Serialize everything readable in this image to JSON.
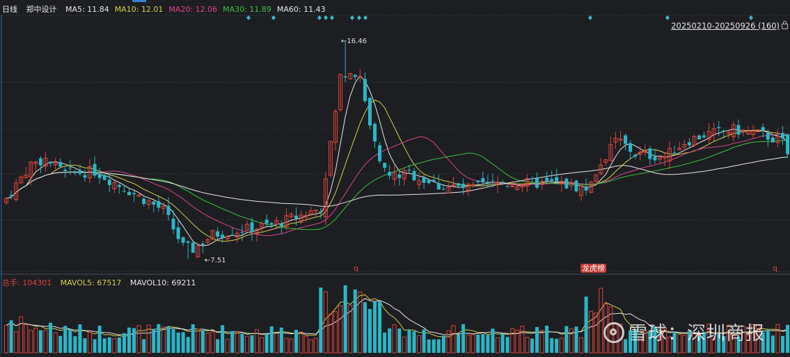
{
  "header": {
    "period": "日线",
    "stock_name": "郑中设计",
    "ma": [
      {
        "label": "MA5:",
        "value": "11.84",
        "color": "#e8e8e8"
      },
      {
        "label": "MA10:",
        "value": "12.01",
        "color": "#d8d24a"
      },
      {
        "label": "MA20:",
        "value": "12.06",
        "color": "#e0448a"
      },
      {
        "label": "MA30:",
        "value": "11.89",
        "color": "#3cc43c"
      },
      {
        "label": "MA60:",
        "value": "11.43",
        "color": "#e8e8e8"
      }
    ],
    "date_range": "20250210-20250926 (160)"
  },
  "volume_header": {
    "total_label": "总手:",
    "total_value": "104301",
    "mavol5_label": "MAVOL5:",
    "mavol5_value": "67517",
    "mavol10_label": "MAVOL10:",
    "mavol10_value": "69211"
  },
  "annotations": {
    "high_label": "16.46",
    "low_label": "7.51",
    "event_marker_1": "q",
    "event_marker_2": "q",
    "tag_label": "龙虎榜"
  },
  "watermark": "雪球：深圳商报",
  "colors": {
    "up": "#e0443a",
    "down": "#2ab7c8",
    "ma5": "#e8e8e8",
    "ma10": "#d8d24a",
    "ma20": "#e0448a",
    "ma30": "#3cc43c",
    "ma60": "#e8e8e8",
    "background": "#1c1e22",
    "grid": "#3a3d44",
    "diamond": "#3fb8c8"
  },
  "chart_data": {
    "type": "candlestick",
    "period": "daily",
    "count": 160,
    "price_axis_range": [
      7.0,
      17.5
    ],
    "high": 16.46,
    "low": 7.51,
    "last_ma": {
      "MA5": 11.84,
      "MA10": 12.01,
      "MA20": 12.06,
      "MA30": 11.89,
      "MA60": 11.43
    },
    "last_volume": {
      "total": 104301,
      "MAVOL5": 67517,
      "MAVOL10": 69211
    },
    "approximate_close_path": [
      [
        0,
        10.0
      ],
      [
        5,
        11.4
      ],
      [
        8,
        11.6
      ],
      [
        12,
        11.0
      ],
      [
        18,
        11.1
      ],
      [
        25,
        10.3
      ],
      [
        32,
        9.5
      ],
      [
        36,
        8.0
      ],
      [
        38,
        7.9
      ],
      [
        42,
        8.5
      ],
      [
        48,
        8.7
      ],
      [
        54,
        8.9
      ],
      [
        60,
        9.3
      ],
      [
        64,
        9.6
      ],
      [
        66,
        12.3
      ],
      [
        67,
        13.5
      ],
      [
        68,
        15.0
      ],
      [
        70,
        15.3
      ],
      [
        72,
        15.0
      ],
      [
        74,
        13.0
      ],
      [
        76,
        11.4
      ],
      [
        78,
        10.9
      ],
      [
        82,
        11.0
      ],
      [
        88,
        10.5
      ],
      [
        94,
        10.4
      ],
      [
        100,
        10.6
      ],
      [
        106,
        10.6
      ],
      [
        112,
        10.6
      ],
      [
        118,
        10.4
      ],
      [
        121,
        11.4
      ],
      [
        124,
        12.5
      ],
      [
        128,
        11.8
      ],
      [
        134,
        11.7
      ],
      [
        138,
        12.3
      ],
      [
        142,
        12.6
      ],
      [
        148,
        12.8
      ],
      [
        154,
        12.6
      ],
      [
        158,
        12.3
      ],
      [
        159,
        11.8
      ]
    ],
    "volume_note": "volume bars in lower panel; peaks around candles 66-74 and 120"
  }
}
